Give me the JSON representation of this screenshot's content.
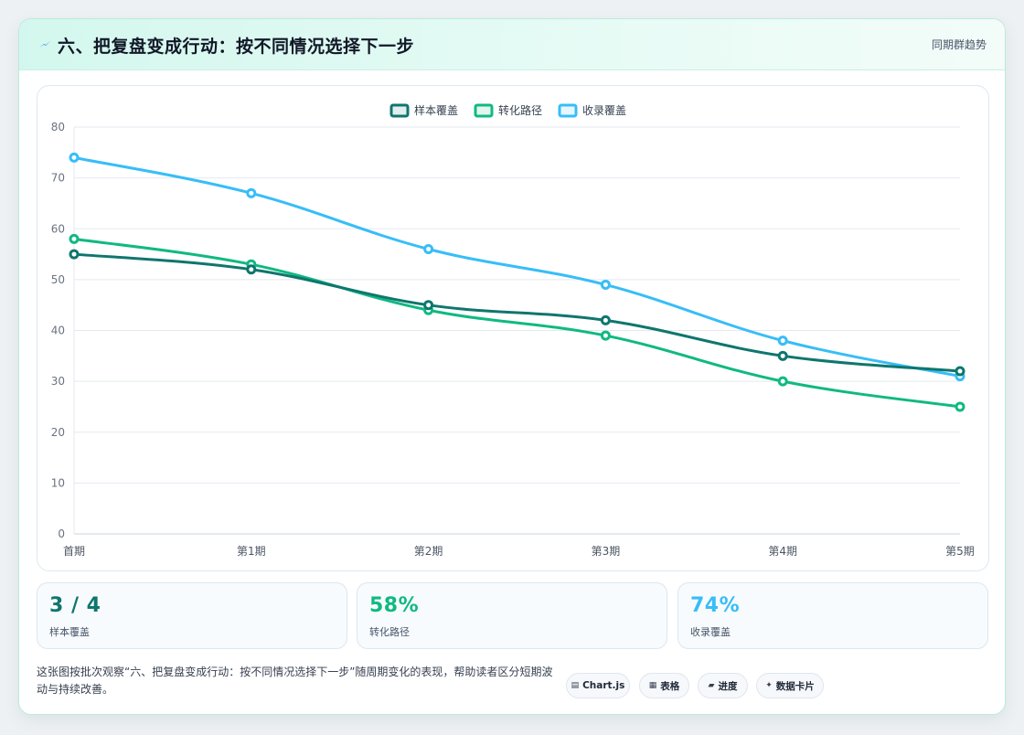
{
  "header": {
    "title": "六、把复盘变成行动：按不同情况选择下一步",
    "tag": "同期群趋势"
  },
  "colors": {
    "series1": "#0f766e",
    "series2": "#10b981",
    "series3": "#38bdf8",
    "accent": "#0f766e"
  },
  "chart_data": {
    "type": "line",
    "x": [
      "首期",
      "第1期",
      "第2期",
      "第3期",
      "第4期",
      "第5期"
    ],
    "ylim": [
      0,
      80
    ],
    "yticks": [
      0,
      10,
      20,
      30,
      40,
      50,
      60,
      70,
      80
    ],
    "grid": true,
    "legend_position": "top-center",
    "series": [
      {
        "name": "样本覆盖",
        "color": "#0f766e",
        "values": [
          55,
          52,
          45,
          42,
          35,
          32
        ]
      },
      {
        "name": "转化路径",
        "color": "#10b981",
        "values": [
          58,
          53,
          44,
          39,
          30,
          25
        ]
      },
      {
        "name": "收录覆盖",
        "color": "#38bdf8",
        "values": [
          74,
          67,
          56,
          49,
          38,
          31
        ]
      }
    ]
  },
  "stats": [
    {
      "value": "3 / 4",
      "label": "样本覆盖",
      "color": "#0f766e"
    },
    {
      "value": "58%",
      "label": "转化路径",
      "color": "#10b981"
    },
    {
      "value": "74%",
      "label": "收录覆盖",
      "color": "#38bdf8"
    }
  ],
  "description": "这张图按批次观察“六、把复盘变成行动：按不同情况选择下一步”随周期变化的表现，帮助读者区分短期波动与持续改善。",
  "pills": [
    {
      "icon": "chart-icon",
      "label": "Chart.js"
    },
    {
      "icon": "table-icon",
      "label": "表格"
    },
    {
      "icon": "progress-icon",
      "label": "进度"
    },
    {
      "icon": "card-icon",
      "label": "数据卡片"
    }
  ]
}
